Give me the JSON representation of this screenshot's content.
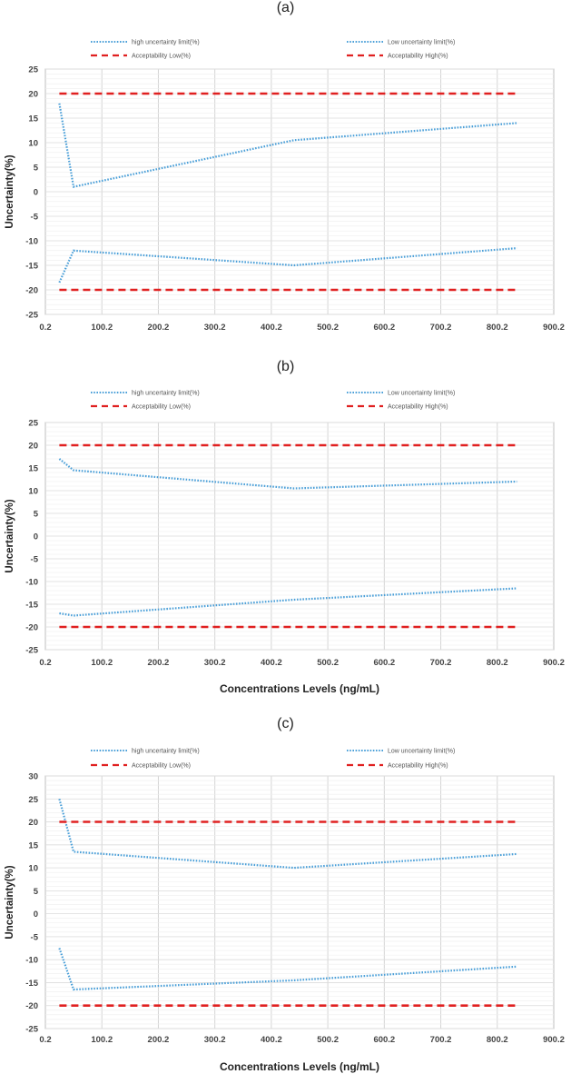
{
  "chart_data": [
    {
      "type": "line",
      "panel_label": "(a)",
      "title": "",
      "xlabel": "",
      "ylabel": "Uncertainty(%)",
      "xlim": [
        0.2,
        900.2
      ],
      "ylim": [
        -25,
        25
      ],
      "x_ticks": [
        "0.2",
        "100.2",
        "200.2",
        "300.2",
        "400.2",
        "500.2",
        "600.2",
        "700.2",
        "800.2",
        "900.2"
      ],
      "y_ticks": [
        "25",
        "20",
        "15",
        "10",
        "5",
        "0",
        "-5",
        "-10",
        "-15",
        "-20",
        "-25"
      ],
      "grid": true,
      "legend": [
        "high uncertainty limit(%)",
        "Low uncertainty limit(%)",
        "Acceptability Low(%)",
        "Acceptability High(%)"
      ],
      "series": [
        {
          "name": "high uncertainty limit(%)",
          "style": "dotted",
          "color": "#4a9fd8",
          "x": [
            25,
            50,
            440,
            835
          ],
          "y": [
            18,
            1,
            10.5,
            14
          ]
        },
        {
          "name": "Low uncertainty limit(%)",
          "style": "dotted",
          "color": "#4a9fd8",
          "x": [
            25,
            50,
            440,
            835
          ],
          "y": [
            -18.5,
            -12,
            -15,
            -11.5
          ]
        },
        {
          "name": "Acceptability Low(%)",
          "style": "dashed",
          "color": "#e02020",
          "x": [
            25,
            835
          ],
          "y": [
            -20,
            -20
          ]
        },
        {
          "name": "Acceptability High(%)",
          "style": "dashed",
          "color": "#e02020",
          "x": [
            25,
            835
          ],
          "y": [
            20,
            20
          ]
        }
      ]
    },
    {
      "type": "line",
      "panel_label": "(b)",
      "title": "",
      "xlabel": "Concentrations Levels  (ng/mL)",
      "ylabel": "Uncertainty(%)",
      "xlim": [
        0.2,
        900.2
      ],
      "ylim": [
        -25,
        25
      ],
      "x_ticks": [
        "0.2",
        "100.2",
        "200.2",
        "300.2",
        "400.2",
        "500.2",
        "600.2",
        "700.2",
        "800.2",
        "900.2"
      ],
      "y_ticks": [
        "25",
        "20",
        "15",
        "10",
        "5",
        "0",
        "-5",
        "-10",
        "-15",
        "-20",
        "-25"
      ],
      "grid": true,
      "legend": [
        "high uncertainty limit(%)",
        "Low uncertainty limit(%)",
        "Acceptability Low(%)",
        "Acceptability High(%)"
      ],
      "series": [
        {
          "name": "high uncertainty limit(%)",
          "style": "dotted",
          "color": "#4a9fd8",
          "x": [
            25,
            50,
            440,
            835
          ],
          "y": [
            17,
            14.5,
            10.5,
            12
          ]
        },
        {
          "name": "Low uncertainty limit(%)",
          "style": "dotted",
          "color": "#4a9fd8",
          "x": [
            25,
            50,
            440,
            835
          ],
          "y": [
            -17,
            -17.5,
            -14,
            -11.5
          ]
        },
        {
          "name": "Acceptability Low(%)",
          "style": "dashed",
          "color": "#e02020",
          "x": [
            25,
            835
          ],
          "y": [
            -20,
            -20
          ]
        },
        {
          "name": "Acceptability High(%)",
          "style": "dashed",
          "color": "#e02020",
          "x": [
            25,
            835
          ],
          "y": [
            20,
            20
          ]
        }
      ]
    },
    {
      "type": "line",
      "panel_label": "(c)",
      "title": "",
      "xlabel": "Concentrations Levels  (ng/mL)",
      "ylabel": "Uncertainty(%)",
      "xlim": [
        0.2,
        900.2
      ],
      "ylim": [
        -25,
        30
      ],
      "x_ticks": [
        "0.2",
        "100.2",
        "200.2",
        "300.2",
        "400.2",
        "500.2",
        "600.2",
        "700.2",
        "800.2",
        "900.2"
      ],
      "y_ticks": [
        "30",
        "25",
        "20",
        "15",
        "10",
        "5",
        "0",
        "-5",
        "-10",
        "-15",
        "-20",
        "-25"
      ],
      "grid": true,
      "legend": [
        "high uncertainty limit(%)",
        "Low uncertainty limit(%)",
        "Acceptability Low(%)",
        "Acceptability High(%)"
      ],
      "series": [
        {
          "name": "high uncertainty limit(%)",
          "style": "dotted",
          "color": "#4a9fd8",
          "x": [
            25,
            50,
            440,
            835
          ],
          "y": [
            25,
            13.5,
            10,
            13
          ]
        },
        {
          "name": "Low uncertainty limit(%)",
          "style": "dotted",
          "color": "#4a9fd8",
          "x": [
            25,
            50,
            440,
            835
          ],
          "y": [
            -7.5,
            -16.5,
            -14.5,
            -11.5
          ]
        },
        {
          "name": "Acceptability Low(%)",
          "style": "dashed",
          "color": "#e02020",
          "x": [
            25,
            835
          ],
          "y": [
            -20,
            -20
          ]
        },
        {
          "name": "Acceptability High(%)",
          "style": "dashed",
          "color": "#e02020",
          "x": [
            25,
            835
          ],
          "y": [
            20,
            20
          ]
        }
      ]
    }
  ]
}
